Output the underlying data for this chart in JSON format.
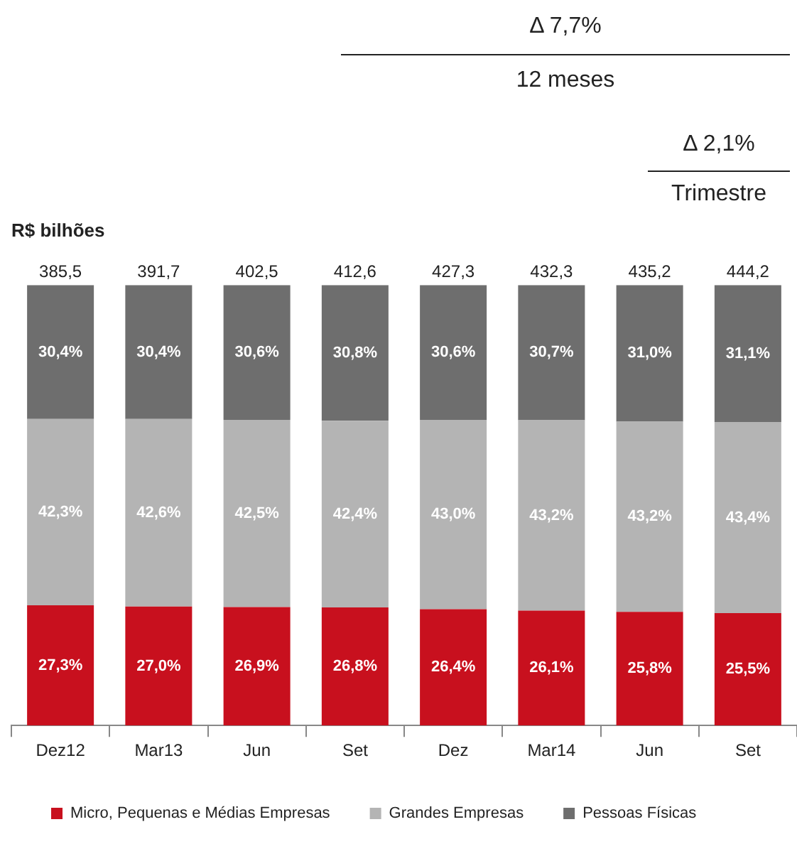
{
  "chart_data": {
    "type": "bar",
    "title": "R$ bilhões",
    "stacked": true,
    "ylim": [
      0,
      100
    ],
    "tick_labels": "x",
    "grid": false,
    "legend": "bottom",
    "categories": [
      "Dez12",
      "Mar13",
      "Jun",
      "Set",
      "Dez",
      "Mar14",
      "Jun",
      "Set"
    ],
    "series": [
      {
        "name": "Micro, Pequenas e Médias Empresas",
        "color": "#c8101e",
        "values": [
          27.3,
          27.0,
          26.9,
          26.8,
          26.4,
          26.1,
          25.8,
          25.5
        ],
        "value_labels": [
          "27,3%",
          "27,0%",
          "26,9%",
          "26,8%",
          "26,4%",
          "26,1%",
          "25,8%",
          "25,5%"
        ]
      },
      {
        "name": "Grandes Empresas",
        "color": "#b4b4b4",
        "values": [
          42.3,
          42.6,
          42.5,
          42.4,
          43.0,
          43.2,
          43.2,
          43.4
        ],
        "value_labels": [
          "42,3%",
          "42,6%",
          "42,5%",
          "42,4%",
          "43,0%",
          "43,2%",
          "43,2%",
          "43,4%"
        ]
      },
      {
        "name": "Pessoas Físicas",
        "color": "#6e6e6e",
        "values": [
          30.4,
          30.4,
          30.6,
          30.8,
          30.6,
          30.7,
          31.0,
          31.1
        ],
        "value_labels": [
          "30,4%",
          "30,4%",
          "30,6%",
          "30,8%",
          "30,6%",
          "30,7%",
          "31,0%",
          "31,1%"
        ]
      }
    ],
    "annotations": [
      "Δ 7,7%",
      "12 meses",
      "Δ 2,1%",
      "Trimestre",
      "385,5",
      "391,7",
      "402,5",
      "412,6",
      "427,3",
      "432,3",
      "435,2",
      "444,2"
    ]
  }
}
